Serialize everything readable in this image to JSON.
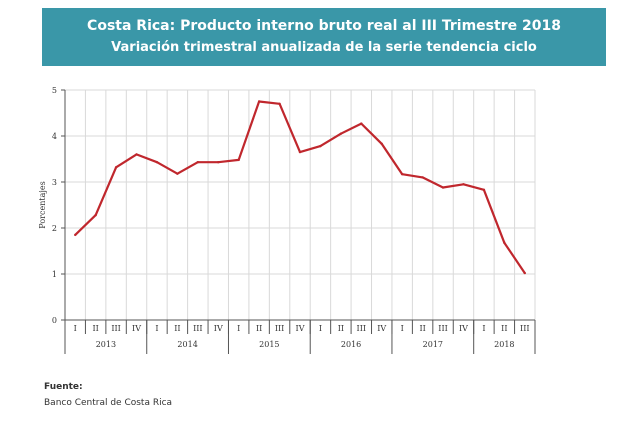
{
  "title": {
    "line1": "Costa Rica: Producto interno bruto real al III Trimestre 2018",
    "line2": "Variación trimestral anualizada de la serie tendencia ciclo"
  },
  "source": {
    "label": "Fuente:",
    "text": "Banco Central de Costa Rica"
  },
  "chart_data": {
    "type": "line",
    "title": "Costa Rica: Producto interno bruto real al III Trimestre 2018",
    "subtitle": "Variación trimestral anualizada de la serie tendencia ciclo",
    "xlabel": "",
    "ylabel": "Porcentajes",
    "ylim": [
      0,
      5
    ],
    "yticks": [
      0,
      1,
      2,
      3,
      4,
      5
    ],
    "grid": true,
    "legend": "none",
    "line_color": "#c0272d",
    "categories": [
      "I",
      "II",
      "III",
      "IV",
      "I",
      "II",
      "III",
      "IV",
      "I",
      "II",
      "III",
      "IV",
      "I",
      "II",
      "III",
      "IV",
      "I",
      "II",
      "III",
      "IV",
      "I",
      "II",
      "III"
    ],
    "years": [
      {
        "label": "2013",
        "quarters": 4
      },
      {
        "label": "2014",
        "quarters": 4
      },
      {
        "label": "2015",
        "quarters": 4
      },
      {
        "label": "2016",
        "quarters": 4
      },
      {
        "label": "2017",
        "quarters": 4
      },
      {
        "label": "2018",
        "quarters": 3
      }
    ],
    "values": [
      1.85,
      2.28,
      3.32,
      3.6,
      3.43,
      3.18,
      3.43,
      3.43,
      3.48,
      4.75,
      4.7,
      3.65,
      3.78,
      4.05,
      4.27,
      3.83,
      3.17,
      3.1,
      2.88,
      2.95,
      2.83,
      1.68,
      1.02
    ]
  }
}
